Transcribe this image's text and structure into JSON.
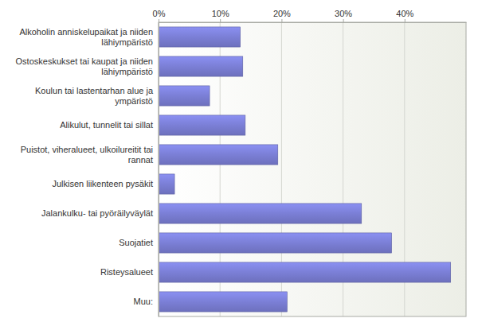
{
  "chart_data": {
    "type": "bar",
    "orientation": "horizontal",
    "categories": [
      "Alkoholin anniskelupaikat ja niiden lähiympäristö",
      "Ostoskeskukset tai kaupat ja niiden lähiympäristö",
      "Koulun tai lastentarhan alue ja ympäristö",
      "Alikulut, tunnelit tai sillat",
      "Puistot, viheralueet, ulkoilureitit tai rannat",
      "Julkisen liikenteen pysäkit",
      "Jalankulku- tai pyöräilyväylät",
      "Suojatiet",
      "Risteysalueet",
      "Muu:"
    ],
    "values": [
      13.3,
      13.7,
      8.3,
      14.1,
      19.4,
      2.6,
      33.0,
      37.9,
      47.5,
      20.9
    ],
    "color": "#7b7fd6",
    "xlim": [
      0,
      50
    ],
    "xticks": [
      {
        "value": 0,
        "label": "0%"
      },
      {
        "value": 10,
        "label": "10%"
      },
      {
        "value": 20,
        "label": "20%"
      },
      {
        "value": 30,
        "label": "30%"
      },
      {
        "value": 40,
        "label": "40%"
      }
    ],
    "grid": true
  }
}
